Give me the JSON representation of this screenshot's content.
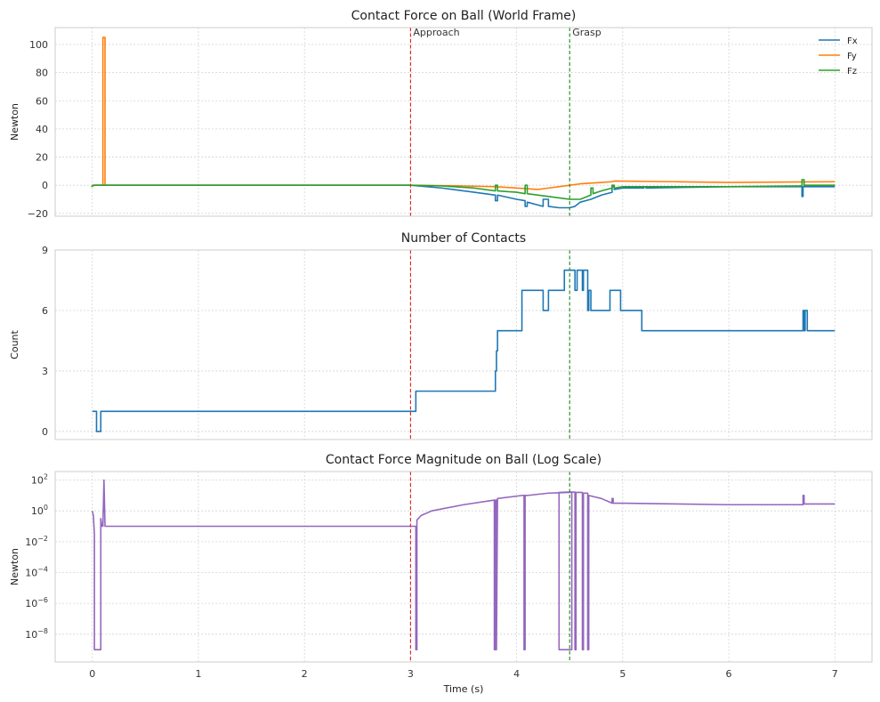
{
  "chart_data": [
    {
      "type": "line",
      "title": "Contact Force on Ball (World Frame)",
      "xlabel": "",
      "ylabel": "Newton",
      "xlim": [
        -0.35,
        7.35
      ],
      "ylim": [
        -22,
        112
      ],
      "xticks": [
        0,
        1,
        2,
        3,
        4,
        5,
        6,
        7
      ],
      "xticklabels": [],
      "yticks": [
        -20,
        0,
        20,
        40,
        60,
        80,
        100
      ],
      "yticklabels": [
        "−20",
        "0",
        "20",
        "40",
        "60",
        "80",
        "100"
      ],
      "grid": true,
      "legend_position": "top-right",
      "series": [
        {
          "name": "Fx",
          "color": "#1f77b4",
          "x": [
            0,
            0.02,
            0.1,
            0.12,
            3.0,
            3.3,
            3.6,
            3.8,
            3.8,
            3.82,
            3.82,
            4.0,
            4.08,
            4.08,
            4.1,
            4.1,
            4.2,
            4.25,
            4.25,
            4.3,
            4.3,
            4.4,
            4.5,
            4.55,
            4.6,
            4.7,
            4.8,
            4.9,
            4.9,
            4.92,
            4.92,
            5.0,
            5.2,
            5.2,
            5.22,
            5.22,
            6.0,
            6.69,
            6.69,
            6.7,
            6.7,
            7.0
          ],
          "y": [
            0,
            0,
            0,
            0,
            0,
            -2,
            -5,
            -7,
            -11,
            -11,
            -7,
            -10,
            -11,
            -15,
            -15,
            -12,
            -14,
            -15,
            -10,
            -10,
            -15,
            -16,
            -16,
            -15,
            -12,
            -10,
            -7,
            -5,
            -1,
            -1,
            -3,
            -2,
            -2,
            -1,
            -1,
            -2,
            -1,
            -1,
            -8,
            -8,
            -1,
            -1
          ]
        },
        {
          "name": "Fy",
          "color": "#ff7f0e",
          "x": [
            0,
            0.1,
            0.1,
            0.11,
            0.12,
            0.12,
            3.0,
            3.5,
            3.8,
            4.0,
            4.2,
            4.3,
            4.4,
            4.5,
            4.6,
            4.7,
            4.8,
            4.9,
            4.92,
            5.5,
            6.0,
            7.0
          ],
          "y": [
            0,
            0,
            105,
            105,
            105,
            0,
            0,
            -0.5,
            -1,
            -2,
            -3,
            -2,
            -1,
            0,
            1,
            1.5,
            2,
            2.5,
            3,
            2.5,
            2,
            2.5
          ]
        },
        {
          "name": "Fz",
          "color": "#2ca02c",
          "x": [
            -0.01,
            0.02,
            0.12,
            3.0,
            3.3,
            3.6,
            3.8,
            3.8,
            3.82,
            3.82,
            4.0,
            4.08,
            4.08,
            4.1,
            4.1,
            4.3,
            4.5,
            4.6,
            4.7,
            4.7,
            4.72,
            4.72,
            4.8,
            4.9,
            4.9,
            4.92,
            4.92,
            5.0,
            5.5,
            6.0,
            6.69,
            6.69,
            6.71,
            6.71,
            7.0
          ],
          "y": [
            -1,
            0,
            0,
            0,
            -0.5,
            -2,
            -4,
            0,
            0,
            -4,
            -5,
            -6,
            0,
            0,
            -6,
            -8,
            -10,
            -10,
            -7,
            -2,
            -2,
            -6,
            -4,
            -2,
            0,
            0,
            -2,
            -1,
            -1,
            -1,
            -0.5,
            4,
            4,
            0,
            0
          ]
        }
      ],
      "annotations": [
        {
          "x": 3.0,
          "label": "Approach",
          "color": "#e31a1c"
        },
        {
          "x": 4.5,
          "label": "Grasp",
          "color": "#1a8a1a"
        }
      ]
    },
    {
      "type": "line",
      "title": "Number of Contacts",
      "xlabel": "",
      "ylabel": "Count",
      "xlim": [
        -0.35,
        7.35
      ],
      "ylim": [
        -0.4,
        9
      ],
      "xticks": [
        0,
        1,
        2,
        3,
        4,
        5,
        6,
        7
      ],
      "xticklabels": [],
      "yticks": [
        0,
        3,
        6,
        9
      ],
      "yticklabels": [
        "0",
        "3",
        "6",
        "9"
      ],
      "grid": true,
      "series": [
        {
          "name": "",
          "color": "#1f77b4",
          "x": [
            0,
            0.04,
            0.04,
            0.08,
            0.08,
            3.05,
            3.05,
            3.8,
            3.8,
            3.81,
            3.81,
            3.82,
            3.82,
            4.05,
            4.05,
            4.25,
            4.25,
            4.3,
            4.3,
            4.45,
            4.45,
            4.55,
            4.55,
            4.57,
            4.57,
            4.62,
            4.62,
            4.63,
            4.63,
            4.67,
            4.67,
            4.68,
            4.68,
            4.7,
            4.7,
            4.88,
            4.88,
            4.98,
            4.98,
            5.18,
            5.18,
            6.7,
            6.7,
            6.71,
            6.71,
            6.72,
            6.72,
            6.74,
            6.74,
            7.0
          ],
          "y": [
            1,
            1,
            0,
            0,
            1,
            1,
            2,
            2,
            3,
            3,
            4,
            4,
            5,
            5,
            7,
            7,
            6,
            6,
            7,
            7,
            8,
            8,
            7,
            7,
            8,
            8,
            7,
            7,
            8,
            8,
            6,
            6,
            7,
            7,
            6,
            6,
            7,
            7,
            6,
            6,
            5,
            5,
            6,
            6,
            5,
            5,
            6,
            6,
            5,
            5
          ]
        }
      ],
      "annotations": [
        {
          "x": 3.0,
          "label": "",
          "color": "#e31a1c"
        },
        {
          "x": 4.5,
          "label": "",
          "color": "#1a8a1a"
        }
      ]
    },
    {
      "type": "line",
      "title": "Contact Force Magnitude on Ball (Log Scale)",
      "xlabel": "Time (s)",
      "ylabel": "Newton",
      "log_y": true,
      "xlim": [
        -0.35,
        7.35
      ],
      "ylim": [
        -9.8,
        2.55
      ],
      "xticks": [
        0,
        1,
        2,
        3,
        4,
        5,
        6,
        7
      ],
      "xticklabels": [
        "0",
        "1",
        "2",
        "3",
        "4",
        "5",
        "6",
        "7"
      ],
      "yticks": [
        -8,
        -6,
        -4,
        -2,
        0,
        2
      ],
      "yticklabels": [
        "10^−8",
        "10^−6",
        "10^−4",
        "10^−2",
        "10^0",
        "10^2"
      ],
      "grid": true,
      "series": [
        {
          "name": "",
          "color": "#9467bd",
          "log10_y_values": true,
          "x": [
            0,
            0.01,
            0.02,
            0.02,
            0.08,
            0.08,
            0.09,
            0.1,
            0.11,
            0.11,
            0.12,
            0.12,
            3.05,
            3.05,
            3.06,
            3.06,
            3.1,
            3.2,
            3.5,
            3.79,
            3.79,
            3.8,
            3.8,
            3.81,
            3.81,
            3.82,
            3.82,
            4.05,
            4.07,
            4.07,
            4.08,
            4.08,
            4.1,
            4.3,
            4.5,
            4.52,
            4.52,
            4.4,
            4.4,
            4.41,
            4.41,
            4.5,
            4.55,
            4.55,
            4.56,
            4.56,
            4.62,
            4.62,
            4.63,
            4.63,
            4.67,
            4.67,
            4.68,
            4.68,
            4.8,
            4.9,
            4.9,
            4.91,
            4.91,
            5.0,
            6.0,
            6.7,
            6.7,
            6.71,
            6.71,
            7.0
          ],
          "y": [
            0.0,
            -0.3,
            -1.5,
            -9.0,
            -9.0,
            -0.5,
            -1.0,
            -1.0,
            2.0,
            2.0,
            -1.0,
            -1.0,
            -1.0,
            -9.0,
            -9.0,
            -0.6,
            -0.3,
            0.0,
            0.4,
            0.7,
            -9.0,
            -9.0,
            0.7,
            0.7,
            -9.0,
            0.8,
            0.8,
            1.0,
            1.0,
            -9.0,
            -9.0,
            1.0,
            1.0,
            1.15,
            1.2,
            1.2,
            -9.0,
            -9.0,
            1.2,
            1.2,
            1.2,
            1.22,
            1.22,
            -9.0,
            -9.0,
            1.2,
            1.2,
            -9.0,
            -9.0,
            1.15,
            1.15,
            -9.0,
            -9.0,
            1.0,
            0.8,
            0.5,
            0.8,
            0.8,
            0.5,
            0.5,
            0.4,
            0.4,
            1.0,
            1.0,
            0.45,
            0.45
          ]
        }
      ],
      "annotations": [
        {
          "x": 3.0,
          "label": "",
          "color": "#e31a1c"
        },
        {
          "x": 4.5,
          "label": "",
          "color": "#1a8a1a"
        }
      ]
    }
  ]
}
